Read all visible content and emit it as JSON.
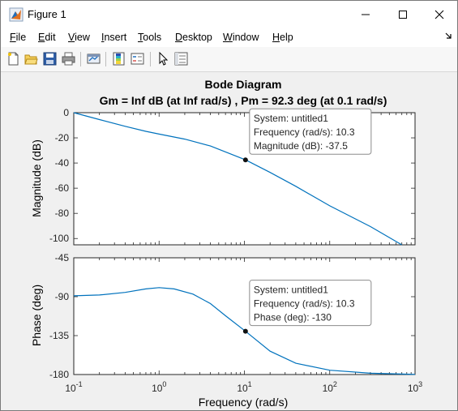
{
  "window": {
    "title": "Figure 1",
    "controls": {
      "minimize": "—",
      "maximize": "☐",
      "close": "✕"
    }
  },
  "menu": [
    {
      "label": "File",
      "accel": "F",
      "rest": "ile"
    },
    {
      "label": "Edit",
      "accel": "E",
      "rest": "dit"
    },
    {
      "label": "View",
      "accel": "V",
      "rest": "iew"
    },
    {
      "label": "Insert",
      "accel": "I",
      "rest": "nsert"
    },
    {
      "label": "Tools",
      "accel": "T",
      "rest": "ools"
    },
    {
      "label": "Desktop",
      "accel": "D",
      "rest": "esktop"
    },
    {
      "label": "Window",
      "accel": "W",
      "rest": "indow"
    },
    {
      "label": "Help",
      "accel": "H",
      "rest": "elp"
    }
  ],
  "toolbar_icons": [
    "new-figure-icon",
    "open-file-icon",
    "save-icon",
    "print-icon",
    "link-plot-icon",
    "colorbar-icon",
    "legend-icon",
    "pointer-icon",
    "property-editor-icon"
  ],
  "colors": {
    "curve": "#0072bd",
    "axes": "#262626",
    "grid": "#dfdfdf"
  },
  "chart_data": {
    "type": "line",
    "title": "Bode Diagram",
    "subtitle": "Gm = Inf dB (at Inf rad/s) ,  Pm = 92.3 deg (at 0.1 rad/s)",
    "xlabel": "Frequency  (rad/s)",
    "x_scale": "log",
    "xlim": [
      0.1,
      1000
    ],
    "x_ticks": [
      0.1,
      1,
      10,
      100,
      1000
    ],
    "x_tick_labels": [
      {
        "base": "10",
        "exp": "-1"
      },
      {
        "base": "10",
        "exp": "0"
      },
      {
        "base": "10",
        "exp": "1"
      },
      {
        "base": "10",
        "exp": "2"
      },
      {
        "base": "10",
        "exp": "3"
      }
    ],
    "grid": false,
    "panels": [
      {
        "name": "magnitude",
        "ylabel": "Magnitude (dB)",
        "ylim": [
          -105,
          0
        ],
        "y_ticks": [
          0,
          -20,
          -40,
          -60,
          -80,
          -100
        ],
        "series": [
          {
            "x": [
              0.1,
              0.2,
              0.4,
              0.7,
              1,
              2,
              4,
              7,
              10.3,
              20,
              40,
              100,
              300,
              700
            ],
            "y": [
              0,
              -5.5,
              -10.8,
              -14.8,
              -17,
              -21,
              -26.5,
              -33,
              -37.5,
              -47.5,
              -58.5,
              -74,
              -90.5,
              -105
            ]
          }
        ],
        "datatip": {
          "x": 10.3,
          "y": -37.5,
          "lines": [
            "System: untitled1",
            "Frequency (rad/s): 10.3",
            "Magnitude (dB): -37.5"
          ]
        }
      },
      {
        "name": "phase",
        "ylabel": "Phase (deg)",
        "ylim": [
          -180,
          -45
        ],
        "y_ticks": [
          -45,
          -90,
          -135,
          -180
        ],
        "series": [
          {
            "x": [
              0.1,
              0.2,
              0.4,
              0.7,
              1,
              1.5,
              2.5,
              4,
              6,
              10.3,
              20,
              40,
              100,
              300,
              1000
            ],
            "y": [
              -89,
              -88,
              -85,
              -81,
              -79.5,
              -81,
              -87,
              -98,
              -112,
              -130,
              -153,
              -167,
              -175,
              -178.5,
              -179.8
            ]
          }
        ],
        "datatip": {
          "x": 10.3,
          "y": -130,
          "lines": [
            "System: untitled1",
            "Frequency (rad/s): 10.3",
            "Phase (deg): -130"
          ]
        }
      }
    ]
  }
}
